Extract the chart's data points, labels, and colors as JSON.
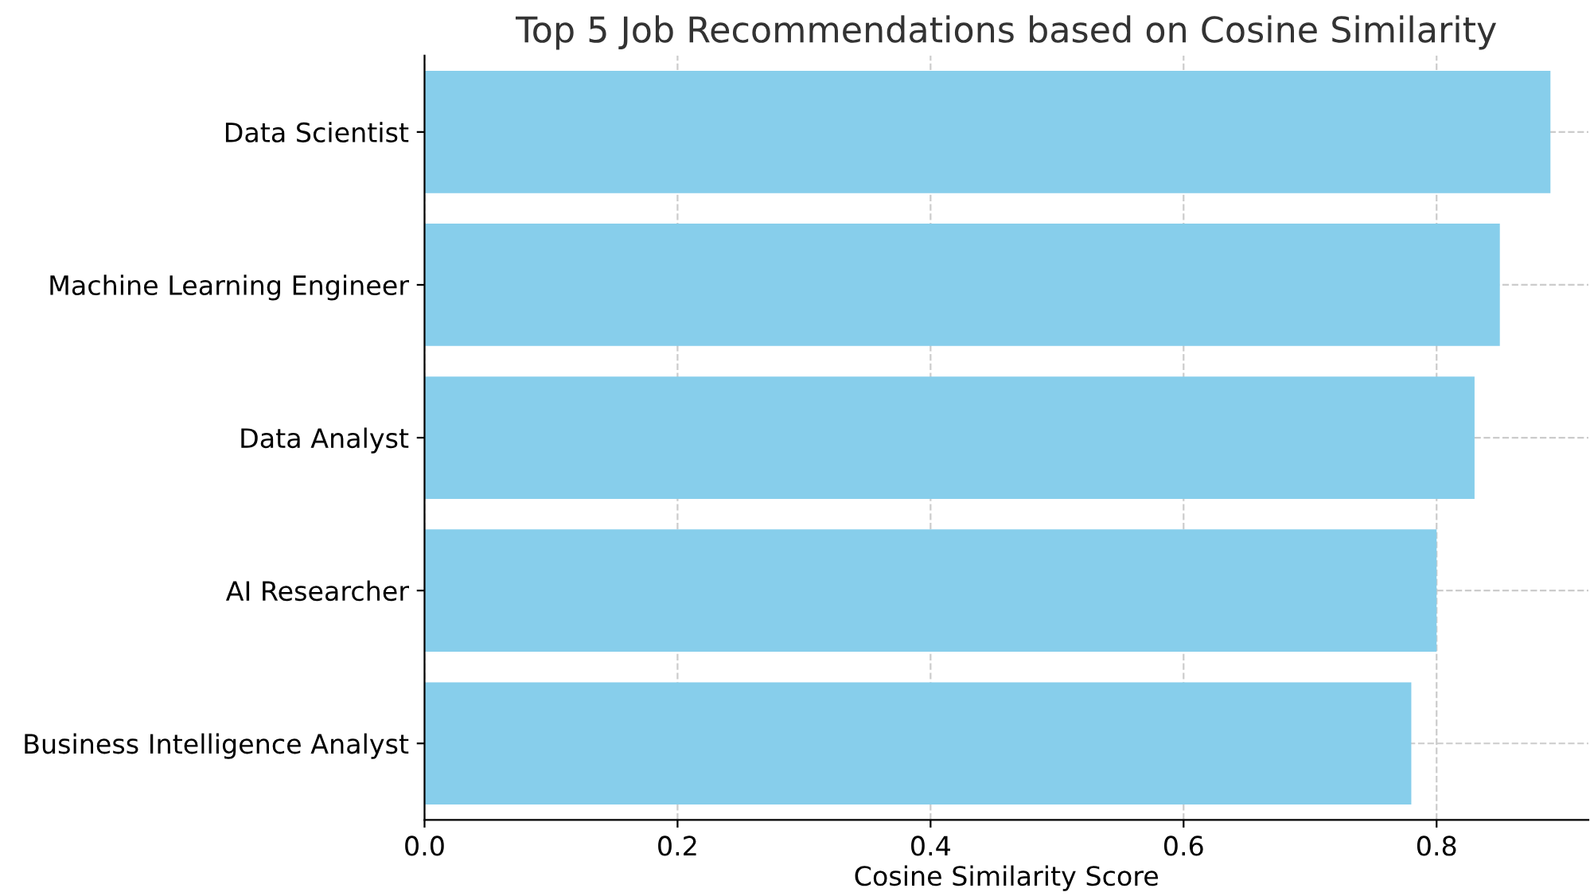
{
  "chart_data": {
    "type": "bar",
    "orientation": "horizontal",
    "title": "Top 5 Job Recommendations based on Cosine Similarity",
    "xlabel": "Cosine Similarity Score",
    "categories": [
      "Data Scientist",
      "Machine Learning Engineer",
      "Data Analyst",
      "AI Researcher",
      "Business Intelligence Analyst"
    ],
    "values": [
      0.89,
      0.85,
      0.83,
      0.8,
      0.78
    ],
    "color": "#87ceeb",
    "xlim": [
      0,
      0.92
    ],
    "xticks": [
      {
        "value": 0,
        "label": "0.0"
      },
      {
        "value": 0.2,
        "label": "0.2"
      },
      {
        "value": 0.4,
        "label": "0.4"
      },
      {
        "value": 0.6,
        "label": "0.6"
      },
      {
        "value": 0.8,
        "label": "0.8"
      }
    ],
    "grid": true,
    "line_style": "dashed"
  }
}
